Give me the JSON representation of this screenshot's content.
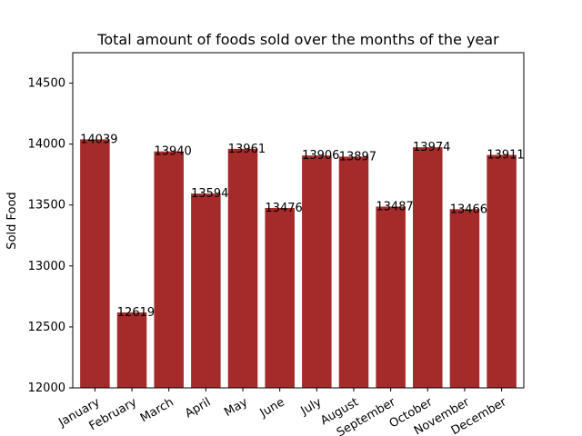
{
  "chart_data": {
    "type": "bar",
    "title": "Total amount of foods sold over the months of the year",
    "xlabel": "",
    "ylabel": "Sold Food",
    "categories": [
      "January",
      "February",
      "March",
      "April",
      "May",
      "June",
      "July",
      "August",
      "September",
      "October",
      "November",
      "December"
    ],
    "values": [
      14039,
      12619,
      13940,
      13594,
      13961,
      13476,
      13906,
      13897,
      13487,
      13974,
      13466,
      13911
    ],
    "data_labels": [
      "14039",
      "12619",
      "13940",
      "13594",
      "13961",
      "13476",
      "13906",
      "13897",
      "13487",
      "13974",
      "13466",
      "13911"
    ],
    "ylim": [
      12000,
      14750
    ],
    "yticks": [
      12000,
      12500,
      13000,
      13500,
      14000,
      14500
    ],
    "ytick_labels": [
      "12000",
      "12500",
      "13000",
      "13500",
      "14000",
      "14500"
    ],
    "bar_color": "#a52a2a",
    "grid": false,
    "legend": "none"
  }
}
